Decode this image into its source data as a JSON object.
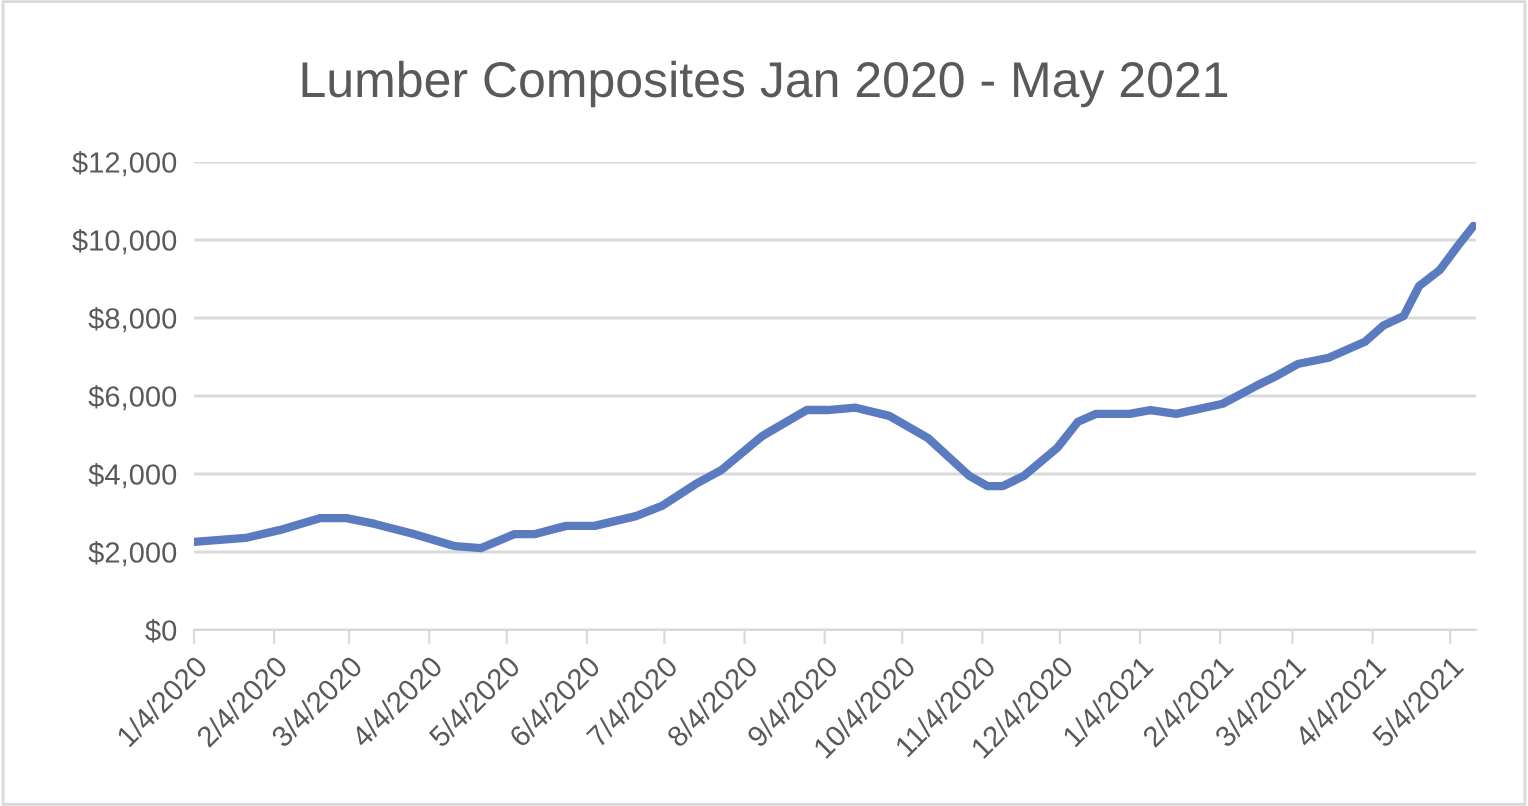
{
  "chart_data": {
    "type": "line",
    "title": "Lumber Composites Jan 2020 - May 2021",
    "x": [
      "2020-01-04",
      "2020-01-24",
      "2020-02-06",
      "2020-02-22",
      "2020-03-03",
      "2020-03-14",
      "2020-03-29",
      "2020-04-14",
      "2020-04-24",
      "2020-05-07",
      "2020-05-15",
      "2020-05-27",
      "2020-06-07",
      "2020-06-23",
      "2020-07-03",
      "2020-07-16",
      "2020-07-26",
      "2020-08-11",
      "2020-08-28",
      "2020-09-05",
      "2020-09-16",
      "2020-09-29",
      "2020-10-14",
      "2020-10-30",
      "2020-11-06",
      "2020-11-12",
      "2020-11-20",
      "2020-12-03",
      "2020-12-11",
      "2020-12-18",
      "2020-12-31",
      "2021-01-08",
      "2021-01-18",
      "2021-02-05",
      "2021-02-18",
      "2021-02-26",
      "2021-03-06",
      "2021-03-18",
      "2021-04-01",
      "2021-04-08",
      "2021-04-16",
      "2021-04-22",
      "2021-04-30",
      "2021-05-07",
      "2021-05-13"
    ],
    "series": [
      {
        "color": "#5b7bc0",
        "values": [
          2260,
          2360,
          2560,
          2870,
          2870,
          2720,
          2460,
          2150,
          2100,
          2460,
          2460,
          2670,
          2670,
          2920,
          3180,
          3740,
          4100,
          4980,
          5640,
          5640,
          5700,
          5490,
          4920,
          3950,
          3690,
          3690,
          3950,
          4670,
          5340,
          5540,
          5540,
          5640,
          5540,
          5800,
          6260,
          6520,
          6820,
          6980,
          7390,
          7800,
          8050,
          8820,
          9230,
          9850,
          10360
        ]
      }
    ],
    "xlim": [
      "2020-01-04",
      "2021-05-14"
    ],
    "xticks": [
      {
        "value": "2020-01-04",
        "label": "1/4/2020"
      },
      {
        "value": "2020-02-04",
        "label": "2/4/2020"
      },
      {
        "value": "2020-03-04",
        "label": "3/4/2020"
      },
      {
        "value": "2020-04-04",
        "label": "4/4/2020"
      },
      {
        "value": "2020-05-04",
        "label": "5/4/2020"
      },
      {
        "value": "2020-06-04",
        "label": "6/4/2020"
      },
      {
        "value": "2020-07-04",
        "label": "7/4/2020"
      },
      {
        "value": "2020-08-04",
        "label": "8/4/2020"
      },
      {
        "value": "2020-09-04",
        "label": "9/4/2020"
      },
      {
        "value": "2020-10-04",
        "label": "10/4/2020"
      },
      {
        "value": "2020-11-04",
        "label": "11/4/2020"
      },
      {
        "value": "2020-12-04",
        "label": "12/4/2020"
      },
      {
        "value": "2021-01-04",
        "label": "1/4/2021"
      },
      {
        "value": "2021-02-04",
        "label": "2/4/2021"
      },
      {
        "value": "2021-03-04",
        "label": "3/4/2021"
      },
      {
        "value": "2021-04-04",
        "label": "4/4/2021"
      },
      {
        "value": "2021-05-04",
        "label": "5/4/2021"
      }
    ],
    "ylim": [
      0,
      12000
    ],
    "yticks": [
      {
        "value": 0,
        "label": "$0"
      },
      {
        "value": 2000,
        "label": "$2,000"
      },
      {
        "value": 4000,
        "label": "$4,000"
      },
      {
        "value": 6000,
        "label": "$6,000"
      },
      {
        "value": 8000,
        "label": "$8,000"
      },
      {
        "value": 10000,
        "label": "$10,000"
      },
      {
        "value": 12000,
        "label": "$12,000"
      }
    ],
    "grid": "y",
    "marker": "none",
    "line_style": "solid"
  }
}
